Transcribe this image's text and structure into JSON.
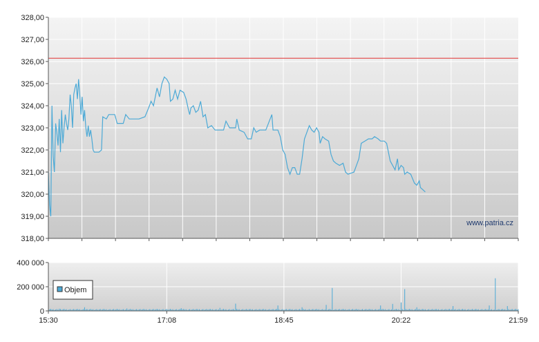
{
  "chart_data": [
    {
      "type": "line",
      "title": "",
      "xlabel": "",
      "ylabel": "",
      "ylim": [
        318.0,
        328.0
      ],
      "y_ticks": [
        "318,00",
        "319,00",
        "320,00",
        "321,00",
        "322,00",
        "323,00",
        "324,00",
        "325,00",
        "326,00",
        "327,00",
        "328,00"
      ],
      "x_range": [
        "15:30",
        "21:59"
      ],
      "grid": true,
      "watermark": "www.patria.cz",
      "reference_line": {
        "value": 326.15,
        "color": "#e03030"
      },
      "series": [
        {
          "color": "#4ba9d6",
          "points": [
            [
              "15:30",
              321.0
            ],
            [
              "15:31",
              319.5
            ],
            [
              "15:32",
              319.0
            ],
            [
              "15:33",
              324.0
            ],
            [
              "15:34",
              321.7
            ],
            [
              "15:35",
              321.0
            ],
            [
              "15:36",
              323.2
            ],
            [
              "15:37",
              322.8
            ],
            [
              "15:38",
              322.2
            ],
            [
              "15:39",
              323.4
            ],
            [
              "15:40",
              321.9
            ],
            [
              "15:41",
              323.8
            ],
            [
              "15:42",
              322.3
            ],
            [
              "15:43",
              323.0
            ],
            [
              "15:44",
              323.6
            ],
            [
              "15:45",
              323.2
            ],
            [
              "15:46",
              322.9
            ],
            [
              "15:47",
              323.4
            ],
            [
              "15:48",
              324.5
            ],
            [
              "15:49",
              324.0
            ],
            [
              "15:50",
              323.0
            ],
            [
              "15:51",
              324.5
            ],
            [
              "15:52",
              324.8
            ],
            [
              "15:53",
              325.0
            ],
            [
              "15:54",
              324.3
            ],
            [
              "15:55",
              325.2
            ],
            [
              "15:56",
              324.5
            ],
            [
              "15:57",
              323.6
            ],
            [
              "15:58",
              324.4
            ],
            [
              "15:59",
              323.3
            ],
            [
              "16:00",
              323.8
            ],
            [
              "16:01",
              323.0
            ],
            [
              "16:02",
              322.6
            ],
            [
              "16:03",
              323.1
            ],
            [
              "16:04",
              322.6
            ],
            [
              "16:05",
              322.9
            ],
            [
              "16:06",
              322.5
            ],
            [
              "16:07",
              322.0
            ],
            [
              "16:08",
              321.9
            ],
            [
              "16:12",
              321.9
            ],
            [
              "16:14",
              322.0
            ],
            [
              "16:15",
              323.5
            ],
            [
              "16:18",
              323.4
            ],
            [
              "16:20",
              323.6
            ],
            [
              "16:25",
              323.6
            ],
            [
              "16:27",
              323.2
            ],
            [
              "16:32",
              323.2
            ],
            [
              "16:34",
              323.6
            ],
            [
              "16:37",
              323.4
            ],
            [
              "16:45",
              323.4
            ],
            [
              "16:50",
              323.5
            ],
            [
              "16:53",
              323.9
            ],
            [
              "16:55",
              324.2
            ],
            [
              "16:57",
              324.0
            ],
            [
              "17:00",
              324.8
            ],
            [
              "17:02",
              324.4
            ],
            [
              "17:04",
              325.0
            ],
            [
              "17:06",
              325.3
            ],
            [
              "17:08",
              325.2
            ],
            [
              "17:10",
              325.0
            ],
            [
              "17:11",
              324.2
            ],
            [
              "17:13",
              324.3
            ],
            [
              "17:15",
              324.7
            ],
            [
              "17:17",
              324.3
            ],
            [
              "17:19",
              324.7
            ],
            [
              "17:22",
              324.6
            ],
            [
              "17:24",
              324.3
            ],
            [
              "17:26",
              323.8
            ],
            [
              "17:27",
              323.6
            ],
            [
              "17:28",
              323.9
            ],
            [
              "17:30",
              324.0
            ],
            [
              "17:32",
              323.7
            ],
            [
              "17:34",
              323.8
            ],
            [
              "17:36",
              324.2
            ],
            [
              "17:38",
              323.5
            ],
            [
              "17:40",
              323.6
            ],
            [
              "17:42",
              323.0
            ],
            [
              "17:45",
              323.1
            ],
            [
              "17:48",
              322.9
            ],
            [
              "17:55",
              322.9
            ],
            [
              "17:57",
              323.3
            ],
            [
              "18:00",
              323.0
            ],
            [
              "18:05",
              323.0
            ],
            [
              "18:06",
              323.4
            ],
            [
              "18:08",
              322.9
            ],
            [
              "18:12",
              322.8
            ],
            [
              "18:15",
              322.5
            ],
            [
              "18:18",
              322.5
            ],
            [
              "18:20",
              323.0
            ],
            [
              "18:22",
              322.8
            ],
            [
              "18:25",
              322.9
            ],
            [
              "18:30",
              322.9
            ],
            [
              "18:35",
              323.6
            ],
            [
              "18:36",
              322.9
            ],
            [
              "18:40",
              322.9
            ],
            [
              "18:42",
              322.6
            ],
            [
              "18:44",
              322.0
            ],
            [
              "18:46",
              321.8
            ],
            [
              "18:48",
              321.2
            ],
            [
              "18:50",
              320.9
            ],
            [
              "18:52",
              321.2
            ],
            [
              "18:54",
              321.2
            ],
            [
              "18:56",
              320.9
            ],
            [
              "18:58",
              320.9
            ],
            [
              "19:00",
              321.6
            ],
            [
              "19:02",
              322.5
            ],
            [
              "19:04",
              322.8
            ],
            [
              "19:06",
              323.1
            ],
            [
              "19:08",
              322.9
            ],
            [
              "19:10",
              322.8
            ],
            [
              "19:12",
              323.0
            ],
            [
              "19:14",
              322.8
            ],
            [
              "19:15",
              322.3
            ],
            [
              "19:17",
              322.6
            ],
            [
              "19:19",
              322.5
            ],
            [
              "19:22",
              322.4
            ],
            [
              "19:24",
              321.8
            ],
            [
              "19:26",
              321.5
            ],
            [
              "19:28",
              321.4
            ],
            [
              "19:31",
              321.3
            ],
            [
              "19:34",
              321.4
            ],
            [
              "19:36",
              321.0
            ],
            [
              "19:38",
              320.9
            ],
            [
              "19:43",
              321.0
            ],
            [
              "19:45",
              321.3
            ],
            [
              "19:47",
              321.6
            ],
            [
              "19:49",
              322.3
            ],
            [
              "19:52",
              322.4
            ],
            [
              "19:55",
              322.5
            ],
            [
              "19:58",
              322.5
            ],
            [
              "20:00",
              322.6
            ],
            [
              "20:03",
              322.5
            ],
            [
              "20:05",
              322.4
            ],
            [
              "20:08",
              322.4
            ],
            [
              "20:10",
              322.3
            ],
            [
              "20:13",
              321.5
            ],
            [
              "20:15",
              321.3
            ],
            [
              "20:17",
              321.1
            ],
            [
              "20:19",
              321.6
            ],
            [
              "20:20",
              321.1
            ],
            [
              "20:22",
              321.3
            ],
            [
              "20:24",
              321.2
            ],
            [
              "20:25",
              320.9
            ],
            [
              "20:27",
              321.0
            ],
            [
              "20:30",
              320.9
            ],
            [
              "20:33",
              320.5
            ],
            [
              "20:35",
              320.4
            ],
            [
              "20:37",
              320.6
            ],
            [
              "20:38",
              320.3
            ],
            [
              "20:40",
              320.2
            ],
            [
              "20:42",
              320.1
            ]
          ]
        }
      ]
    },
    {
      "type": "bar",
      "title": "",
      "xlabel": "",
      "ylabel": "",
      "ylim": [
        0,
        400000
      ],
      "y_ticks": [
        "0",
        "200 000",
        "400 000"
      ],
      "x_ticks": [
        "15:30",
        "17:08",
        "18:45",
        "20:22",
        "21:59"
      ],
      "grid": true,
      "legend": {
        "position": "left",
        "entries": [
          "Objem"
        ]
      },
      "series": [
        {
          "name": "Objem",
          "color": "#4ba9d6",
          "baseline": 12000,
          "spikes": [
            [
              "15:30",
              40000
            ],
            [
              "15:39",
              18000
            ],
            [
              "16:00",
              30000
            ],
            [
              "16:35",
              20000
            ],
            [
              "17:20",
              22000
            ],
            [
              "17:52",
              25000
            ],
            [
              "18:05",
              60000
            ],
            [
              "18:40",
              45000
            ],
            [
              "19:00",
              30000
            ],
            [
              "19:20",
              50000
            ],
            [
              "19:25",
              190000
            ],
            [
              "20:05",
              45000
            ],
            [
              "20:15",
              58000
            ],
            [
              "20:22",
              70000
            ],
            [
              "20:25",
              180000
            ],
            [
              "20:35",
              30000
            ],
            [
              "21:05",
              40000
            ],
            [
              "21:35",
              45000
            ],
            [
              "21:40",
              270000
            ],
            [
              "21:50",
              40000
            ]
          ]
        }
      ]
    }
  ]
}
